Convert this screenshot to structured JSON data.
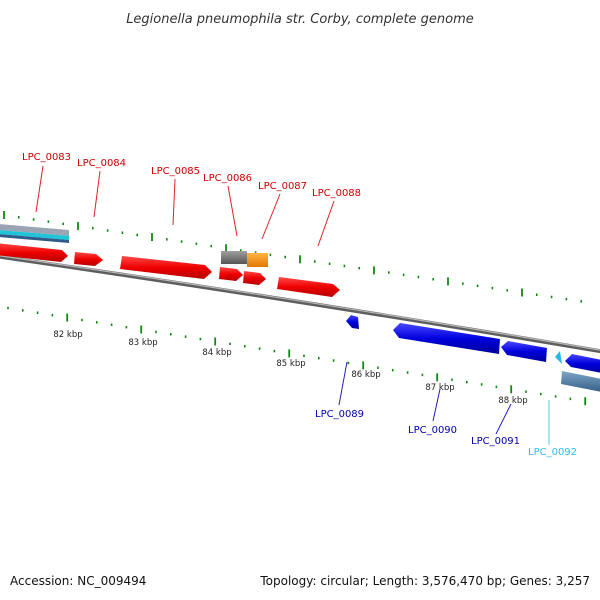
{
  "title": "Legionella pneumophila str. Corby, complete genome",
  "footer": {
    "accession": "Accession: NC_009494",
    "summary": "Topology: circular; Length: 3,576,470 bp; Genes: 3,257"
  },
  "colors": {
    "forward_gene": "#ee0000",
    "reverse_gene": "#0000dd",
    "forward_label": "#cc0000",
    "reverse_label": "#0000aa",
    "rna_label": "#33bbee",
    "backbone": "#888888",
    "tick": "#118811"
  },
  "kbp_labels": [
    "82 kbp",
    "83 kbp",
    "84 kbp",
    "85 kbp",
    "86 kbp",
    "87 kbp",
    "88 kbp"
  ],
  "gene_labels": [
    {
      "text": "LPC_0083",
      "strand": "forward"
    },
    {
      "text": "LPC_0084",
      "strand": "forward"
    },
    {
      "text": "LPC_0085",
      "strand": "forward"
    },
    {
      "text": "LPC_0086",
      "strand": "forward"
    },
    {
      "text": "LPC_0087",
      "strand": "forward"
    },
    {
      "text": "LPC_0088",
      "strand": "forward"
    },
    {
      "text": "LPC_0089",
      "strand": "reverse"
    },
    {
      "text": "LPC_0090",
      "strand": "reverse"
    },
    {
      "text": "LPC_0091",
      "strand": "reverse"
    },
    {
      "text": "LPC_0092",
      "strand": "rna"
    }
  ]
}
